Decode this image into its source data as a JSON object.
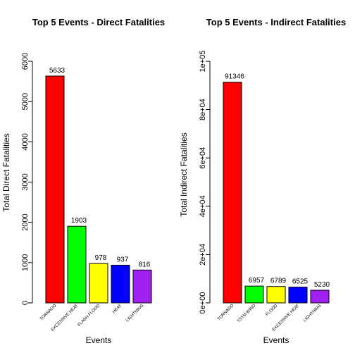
{
  "chart_data": [
    {
      "type": "bar",
      "title": "Top 5 Events - Direct Fatalities",
      "xlabel": "Events",
      "ylabel": "Total Direct Fatalities",
      "categories": [
        "TORNADO",
        "EXCESSIVE HEAT",
        "FLASH FLOOD",
        "HEAT",
        "LIGHTNING"
      ],
      "values": [
        5633,
        1903,
        978,
        937,
        816
      ],
      "data_labels": [
        "5633",
        "1903",
        "978",
        "937",
        "816"
      ],
      "colors": [
        "#ff0000",
        "#00ff00",
        "#ffff00",
        "#0000ff",
        "#a020f0"
      ],
      "ylim": [
        0,
        6000
      ],
      "yticks": [
        0,
        1000,
        2000,
        3000,
        4000,
        5000,
        6000
      ],
      "ytick_labels": [
        "0",
        "1000",
        "2000",
        "3000",
        "4000",
        "5000",
        "6000"
      ],
      "grid": false,
      "legend": "none"
    },
    {
      "type": "bar",
      "title": "Top 5 Events - Indirect Fatalities",
      "xlabel": "Events",
      "ylabel": "Total Indirect Fatalities",
      "categories": [
        "TORNADO",
        "TSTM WIND",
        "FLOOD",
        "EXCESSIVE HEAT",
        "LIGHTNING"
      ],
      "values": [
        91346,
        6957,
        6789,
        6525,
        5230
      ],
      "data_labels": [
        "91346",
        "6957",
        "6789",
        "6525",
        "5230"
      ],
      "colors": [
        "#ff0000",
        "#00ff00",
        "#ffff00",
        "#0000ff",
        "#a020f0"
      ],
      "ylim": [
        0,
        100000
      ],
      "yticks": [
        0,
        20000,
        40000,
        60000,
        80000,
        100000
      ],
      "ytick_labels": [
        "0e+00",
        "2e+04",
        "4e+04",
        "6e+04",
        "8e+04",
        "1e+05"
      ],
      "grid": false,
      "legend": "none"
    }
  ]
}
